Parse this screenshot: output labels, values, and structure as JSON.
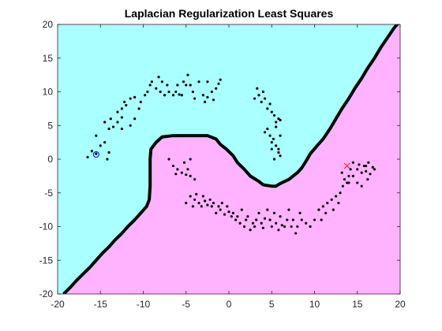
{
  "chart_data": {
    "type": "scatter",
    "title": "Laplacian Regularization Least Squares",
    "xlabel": "",
    "ylabel": "",
    "xlim": [
      -20,
      20
    ],
    "ylim": [
      -20,
      20
    ],
    "xticks": [
      -20,
      -15,
      -10,
      -5,
      0,
      5,
      10,
      15,
      20
    ],
    "yticks": [
      -20,
      -15,
      -10,
      -5,
      0,
      5,
      10,
      15,
      20
    ],
    "grid": false,
    "legend": "none",
    "colors": {
      "region_class_1": "#aaffff",
      "region_class_2": "#ffb3ff",
      "boundary": "#000000",
      "unlabeled": "#000000",
      "labeled_class_1": "#0000ff",
      "labeled_class_2": "#ff0000"
    },
    "decision_boundary": [
      [
        -19.3,
        -20
      ],
      [
        -18.5,
        -19
      ],
      [
        -17.8,
        -18
      ],
      [
        -17,
        -17
      ],
      [
        -16.2,
        -16
      ],
      [
        -15.5,
        -15
      ],
      [
        -14.8,
        -14
      ],
      [
        -14,
        -13
      ],
      [
        -13.3,
        -12
      ],
      [
        -12.5,
        -11
      ],
      [
        -11.8,
        -10
      ],
      [
        -11,
        -9
      ],
      [
        -10.3,
        -8
      ],
      [
        -9.6,
        -7
      ],
      [
        -9.3,
        -6
      ],
      [
        -9.2,
        -4
      ],
      [
        -9.2,
        -2
      ],
      [
        -9.2,
        0
      ],
      [
        -9.1,
        1.5
      ],
      [
        -8.5,
        2.5
      ],
      [
        -7.8,
        3.3
      ],
      [
        -6.5,
        3.5
      ],
      [
        -4,
        3.5
      ],
      [
        -2.5,
        3.5
      ],
      [
        -1.5,
        3
      ],
      [
        -1,
        2.2
      ],
      [
        -0.3,
        1.5
      ],
      [
        0.5,
        0.5
      ],
      [
        1,
        -0.5
      ],
      [
        1.8,
        -1.5
      ],
      [
        2.5,
        -2.5
      ],
      [
        3.5,
        -3.3
      ],
      [
        4,
        -3.8
      ],
      [
        5,
        -4
      ],
      [
        5.5,
        -4
      ],
      [
        6,
        -3.6
      ],
      [
        7,
        -3
      ],
      [
        8,
        -2
      ],
      [
        8.5,
        -1.3
      ],
      [
        9,
        -0.3
      ],
      [
        9.5,
        0.8
      ],
      [
        10.3,
        2
      ],
      [
        11,
        3
      ],
      [
        11.8,
        4.5
      ],
      [
        12.5,
        6
      ],
      [
        13.2,
        7.5
      ],
      [
        14,
        9
      ],
      [
        14.7,
        10.5
      ],
      [
        15.5,
        12
      ],
      [
        16.2,
        13.5
      ],
      [
        17,
        15
      ],
      [
        17.7,
        16.5
      ],
      [
        18.5,
        18
      ],
      [
        19.3,
        19.5
      ],
      [
        20,
        20.5
      ]
    ],
    "series": [
      {
        "role": "unlabeled",
        "points": [
          [
            -16.5,
            0.3
          ],
          [
            -16,
            1.2
          ],
          [
            -15.5,
            0.8
          ],
          [
            -15,
            2
          ],
          [
            -15.5,
            3.5
          ],
          [
            -14.5,
            2.5
          ],
          [
            -14,
            1
          ],
          [
            -14.2,
            0
          ],
          [
            -14.5,
            5.5
          ],
          [
            -14,
            4.5
          ],
          [
            -13.5,
            4.8
          ],
          [
            -13.8,
            6
          ],
          [
            -13,
            5.5
          ],
          [
            -12.5,
            6.2
          ],
          [
            -13,
            7
          ],
          [
            -12.5,
            7.5
          ],
          [
            -12.2,
            8.5
          ],
          [
            -12,
            8
          ],
          [
            -11.5,
            9
          ],
          [
            -11,
            9.2
          ],
          [
            -12.5,
            4.5
          ],
          [
            -11.5,
            5
          ],
          [
            -11,
            6
          ],
          [
            -10.5,
            7.5
          ],
          [
            -10.3,
            8.5
          ],
          [
            -9.8,
            9.5
          ],
          [
            -9.5,
            10
          ],
          [
            -9,
            11.5
          ],
          [
            -9.2,
            11
          ],
          [
            -8.5,
            10.5
          ],
          [
            -8.2,
            12.2
          ],
          [
            -8,
            10
          ],
          [
            -7.8,
            11.5
          ],
          [
            -7.5,
            9.5
          ],
          [
            -7.2,
            11
          ],
          [
            -7,
            10
          ],
          [
            -6.5,
            9.5
          ],
          [
            -6.2,
            10
          ],
          [
            -6,
            11
          ],
          [
            -5.8,
            9.6
          ],
          [
            -5.5,
            9.5
          ],
          [
            -5.3,
            11.5
          ],
          [
            -5,
            11
          ],
          [
            -4.8,
            12.5
          ],
          [
            -4.5,
            11
          ],
          [
            -4.2,
            10
          ],
          [
            -4,
            9
          ],
          [
            -3.5,
            11.5
          ],
          [
            -3,
            9.5
          ],
          [
            -2.8,
            8.5
          ],
          [
            -2.5,
            9.2
          ],
          [
            -2,
            10
          ],
          [
            -1.8,
            8.8
          ],
          [
            -1.5,
            10.5
          ],
          [
            -1.2,
            11.2
          ],
          [
            -1,
            11.8
          ],
          [
            -2.5,
            11.5
          ],
          [
            3,
            9
          ],
          [
            3.3,
            10.5
          ],
          [
            3.5,
            9.5
          ],
          [
            3.8,
            8.5
          ],
          [
            4,
            10
          ],
          [
            4.2,
            9
          ],
          [
            4.5,
            7.5
          ],
          [
            4.8,
            8.2
          ],
          [
            5,
            7
          ],
          [
            5.3,
            6.5
          ],
          [
            5.5,
            5.5
          ],
          [
            5.8,
            6
          ],
          [
            4.2,
            4
          ],
          [
            4.5,
            4.5
          ],
          [
            4.8,
            3.5
          ],
          [
            5,
            2.5
          ],
          [
            5.2,
            3
          ],
          [
            5.5,
            2
          ],
          [
            5.8,
            1
          ],
          [
            6,
            0.5
          ],
          [
            5.3,
            0
          ],
          [
            5.8,
            1.5
          ],
          [
            6,
            3.5
          ],
          [
            5.5,
            4.8
          ],
          [
            6,
            5.8
          ],
          [
            5,
            1.5
          ],
          [
            -7,
            0
          ],
          [
            -6.5,
            -1
          ],
          [
            -6,
            -1.5
          ],
          [
            -6.2,
            -2.2
          ],
          [
            -5.5,
            -2
          ],
          [
            -5,
            -2.3
          ],
          [
            -4.8,
            -1.5
          ],
          [
            -4.5,
            -2.5
          ],
          [
            -4,
            -3
          ],
          [
            -5.2,
            -0.5
          ],
          [
            -4.5,
            0
          ],
          [
            -5,
            -6.5
          ],
          [
            -4.5,
            -5.5
          ],
          [
            -4.2,
            -7
          ],
          [
            -4,
            -6
          ],
          [
            -3.8,
            -5.2
          ],
          [
            -3.5,
            -6.5
          ],
          [
            -3.2,
            -7
          ],
          [
            -3,
            -5.5
          ],
          [
            -2.8,
            -6.2
          ],
          [
            -2.5,
            -6.8
          ],
          [
            -2.2,
            -6
          ],
          [
            -2,
            -7
          ],
          [
            -1.8,
            -6.5
          ],
          [
            -1.5,
            -8
          ],
          [
            -1.2,
            -7
          ],
          [
            -1,
            -7.5
          ],
          [
            -0.8,
            -6.5
          ],
          [
            -0.5,
            -8.2
          ],
          [
            -0.2,
            -7
          ],
          [
            0,
            -7.8
          ],
          [
            0.3,
            -8.5
          ],
          [
            0.5,
            -8
          ],
          [
            0.8,
            -9
          ],
          [
            1,
            -8.5
          ],
          [
            1.3,
            -9.5
          ],
          [
            1.5,
            -7.5
          ],
          [
            1.8,
            -10
          ],
          [
            2,
            -9
          ],
          [
            2.2,
            -8.5
          ],
          [
            2.5,
            -10.5
          ],
          [
            2.8,
            -9.5
          ],
          [
            3,
            -10
          ],
          [
            3.2,
            -9
          ],
          [
            3.5,
            -8
          ],
          [
            3.8,
            -9.5
          ],
          [
            4,
            -10.2
          ],
          [
            4.2,
            -8.8
          ],
          [
            4.5,
            -7.5
          ],
          [
            4.8,
            -9
          ],
          [
            5,
            -10
          ],
          [
            5.3,
            -8
          ],
          [
            5.5,
            -9.5
          ],
          [
            5.8,
            -10.5
          ],
          [
            6,
            -8.5
          ],
          [
            6.2,
            -9.8
          ],
          [
            6.5,
            -10
          ],
          [
            6.8,
            -9
          ],
          [
            7,
            -7.5
          ],
          [
            7.3,
            -10
          ],
          [
            7.5,
            -9
          ],
          [
            7.8,
            -11
          ],
          [
            8,
            -10
          ],
          [
            8.3,
            -8
          ],
          [
            8.5,
            -9
          ],
          [
            9,
            -9.5
          ],
          [
            9.5,
            -10
          ],
          [
            10,
            -9
          ],
          [
            10.5,
            -7.5
          ],
          [
            10.8,
            -9
          ],
          [
            11,
            -7
          ],
          [
            11.3,
            -8
          ],
          [
            11.5,
            -6.5
          ],
          [
            12,
            -6
          ],
          [
            12.2,
            -7.5
          ],
          [
            12.5,
            -5.5
          ],
          [
            12.8,
            -6.5
          ],
          [
            13,
            -5
          ],
          [
            13.3,
            -4
          ],
          [
            13.5,
            -3
          ],
          [
            13.8,
            -3.5
          ],
          [
            14,
            -2.5
          ],
          [
            14.2,
            -1.5
          ],
          [
            14.5,
            -0.5
          ],
          [
            14.5,
            -2.5
          ],
          [
            15,
            -1.5
          ],
          [
            15.2,
            -0.8
          ],
          [
            15.5,
            -2
          ],
          [
            15.8,
            -1
          ],
          [
            16,
            -1.8
          ],
          [
            16.3,
            -0.5
          ],
          [
            16.5,
            -2.2
          ],
          [
            16.8,
            -1.2
          ],
          [
            17,
            -1.5
          ],
          [
            15,
            -3.5
          ],
          [
            14,
            -3.5
          ],
          [
            13.2,
            -2
          ],
          [
            15.5,
            -4
          ],
          [
            16,
            -1
          ],
          [
            16.2,
            -3
          ]
        ]
      },
      {
        "role": "labeled_class_1",
        "marker": "circle",
        "points": [
          [
            -15.5,
            0.7
          ]
        ]
      },
      {
        "role": "labeled_class_2",
        "marker": "x",
        "points": [
          [
            13.8,
            -1
          ]
        ]
      }
    ]
  }
}
